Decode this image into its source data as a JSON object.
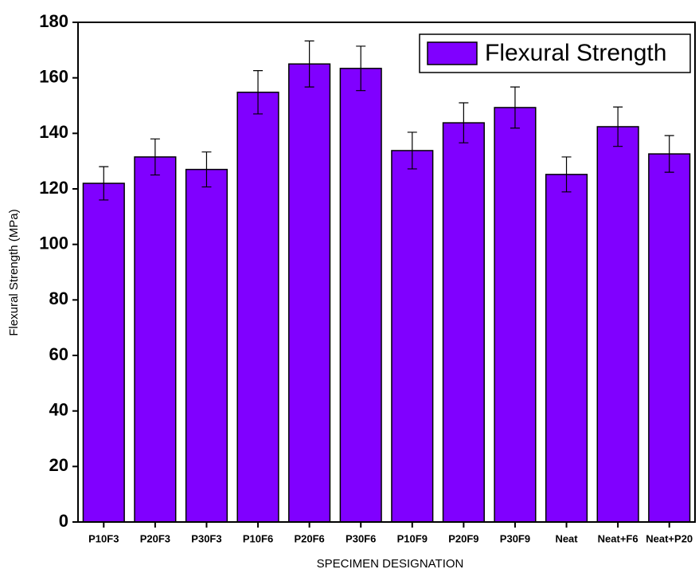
{
  "chart_data": {
    "type": "bar",
    "x_label": "SPECIMEN DESIGNATION",
    "y_label": "Flexural Strength (MPa)",
    "categories": [
      "P10F3",
      "P20F3",
      "P30F3",
      "P10F6",
      "P20F6",
      "P30F6",
      "P10F9",
      "P20F9",
      "P30F9",
      "Neat",
      "Neat+F6",
      "Neat+P20"
    ],
    "series": [
      {
        "name": "Flexural Strength",
        "color": "#8000ff",
        "values": [
          122,
          131.5,
          127,
          154.8,
          165,
          163.4,
          133.8,
          143.8,
          149.3,
          125.2,
          142.4,
          132.6
        ],
        "errors": [
          6,
          6.5,
          6.3,
          7.8,
          8.3,
          8,
          6.6,
          7.2,
          7.4,
          6.3,
          7.1,
          6.6
        ]
      }
    ],
    "ylim": [
      0,
      180
    ],
    "yticks": [
      0,
      20,
      40,
      60,
      80,
      100,
      120,
      140,
      160,
      180
    ],
    "legend": "top-right"
  }
}
